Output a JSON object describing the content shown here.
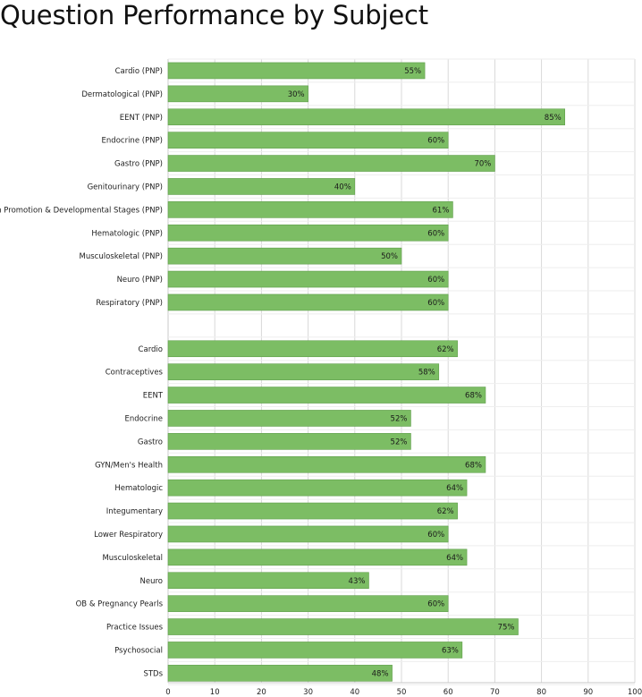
{
  "title": "Question Performance by Subject",
  "colors": {
    "bar": "#7cbd64",
    "bar_border": "#5f9e4a",
    "grid": "#d9d9d9",
    "axis": "#c8c8c8"
  },
  "chart_data": {
    "type": "bar",
    "orientation": "horizontal",
    "title": "Question Performance by Subject",
    "xlabel": "",
    "ylabel": "",
    "xlim": [
      0,
      100
    ],
    "x_ticks": [
      0,
      10,
      20,
      30,
      40,
      50,
      60,
      70,
      80,
      90,
      100
    ],
    "grid": true,
    "legend": "none",
    "categories": [
      "Cardio (PNP)",
      "Dermatological (PNP)",
      "EENT (PNP)",
      "Endocrine (PNP)",
      "Gastro (PNP)",
      "Genitourinary (PNP)",
      "Health Promotion & Developmental Stages (PNP)",
      "Hematologic (PNP)",
      "Musculoskeletal (PNP)",
      "Neuro (PNP)",
      "Respiratory (PNP)",
      "",
      "Cardio",
      "Contraceptives",
      "EENT",
      "Endocrine",
      "Gastro",
      "GYN/Men's Health",
      "Hematologic",
      "Integumentary",
      "Lower Respiratory",
      "Musculoskeletal",
      "Neuro",
      "OB & Pregnancy Pearls",
      "Practice Issues",
      "Psychosocial",
      "STDs"
    ],
    "values": [
      55,
      30,
      85,
      60,
      70,
      40,
      61,
      60,
      50,
      60,
      60,
      null,
      62,
      58,
      68,
      52,
      52,
      68,
      64,
      62,
      60,
      64,
      43,
      60,
      75,
      63,
      48
    ],
    "data_labels": [
      "55%",
      "30%",
      "85%",
      "60%",
      "70%",
      "40%",
      "61%",
      "60%",
      "50%",
      "60%",
      "60%",
      "",
      "62%",
      "58%",
      "68%",
      "52%",
      "52%",
      "68%",
      "64%",
      "62%",
      "60%",
      "64%",
      "43%",
      "60%",
      "75%",
      "63%",
      "48%"
    ]
  }
}
